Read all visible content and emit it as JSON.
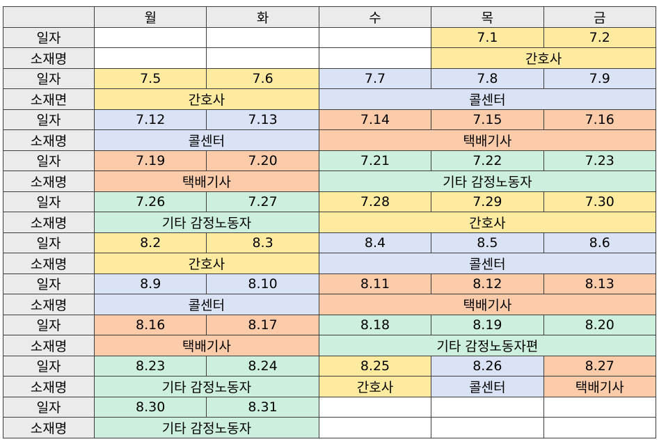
{
  "header": {
    "corner": "",
    "days": [
      "월",
      "화",
      "수",
      "목",
      "금"
    ]
  },
  "labels": {
    "date": "일자",
    "material": "소재명",
    "material_alt": "소재면"
  },
  "colors": {
    "nurse": "#ffeba0",
    "call_center": "#dae3f5",
    "delivery": "#fccbaa",
    "other": "#ccefde",
    "label_bg": "#ebebeb"
  },
  "weeks": [
    {
      "label_date": "일자",
      "label_material": "소재명",
      "dates": [
        "",
        "",
        "",
        "7.1",
        "7.2"
      ],
      "materials": [
        "",
        "",
        "",
        "간호사"
      ]
    },
    {
      "label_date": "일자",
      "label_material": "소재면",
      "dates": [
        "7.5",
        "7.6",
        "7.7",
        "7.8",
        "7.9"
      ],
      "materials": [
        "간호사",
        "콜센터"
      ]
    },
    {
      "label_date": "일자",
      "label_material": "소재명",
      "dates": [
        "7.12",
        "7.13",
        "7.14",
        "7.15",
        "7.16"
      ],
      "materials": [
        "콜센터",
        "택배기사"
      ]
    },
    {
      "label_date": "일자",
      "label_material": "소재명",
      "dates": [
        "7.19",
        "7.20",
        "7.21",
        "7.22",
        "7.23"
      ],
      "materials": [
        "택배기사",
        "기타 감정노동자"
      ]
    },
    {
      "label_date": "일자",
      "label_material": "소재명",
      "dates": [
        "7.26",
        "7.27",
        "7.28",
        "7.29",
        "7.30"
      ],
      "materials": [
        "기타 감정노동자",
        "간호사"
      ]
    },
    {
      "label_date": "일자",
      "label_material": "소재명",
      "dates": [
        "8.2",
        "8.3",
        "8.4",
        "8.5",
        "8.6"
      ],
      "materials": [
        "간호사",
        "콜센터"
      ]
    },
    {
      "label_date": "일자",
      "label_material": "소재명",
      "dates": [
        "8.9",
        "8.10",
        "8.11",
        "8.12",
        "8.13"
      ],
      "materials": [
        "콜센터",
        "택배기사"
      ]
    },
    {
      "label_date": "일자",
      "label_material": "소재명",
      "dates": [
        "8.16",
        "8.17",
        "8.18",
        "8.19",
        "8.20"
      ],
      "materials": [
        "택배기사",
        "기타 감정노동자편"
      ]
    },
    {
      "label_date": "일자",
      "label_material": "소재명",
      "dates": [
        "8.23",
        "8.24",
        "8.25",
        "8.26",
        "8.27"
      ],
      "materials": [
        "기타 감정노동자",
        "간호사",
        "콜센터",
        "택배기사"
      ]
    },
    {
      "label_date": "일자",
      "label_material": "소재명",
      "dates": [
        "8.30",
        "8.31",
        "",
        "",
        ""
      ],
      "materials": [
        "기타 감정노동자",
        "",
        "",
        ""
      ]
    }
  ]
}
